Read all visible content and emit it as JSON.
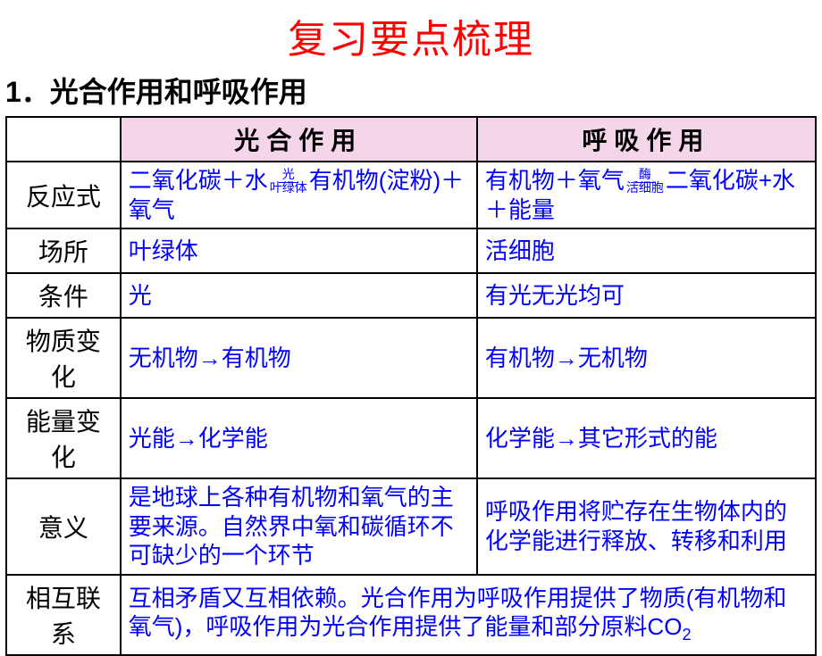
{
  "colors": {
    "title": "#ff0000",
    "subtitle": "#000000",
    "header_bg": "#f5d5ea",
    "header_text": "#000000",
    "row_header_text": "#000000",
    "cell_text": "#0000ff",
    "border": "#000000",
    "background": "#ffffff"
  },
  "title": "复习要点梳理",
  "subtitle": "1．光合作用和呼吸作用",
  "table": {
    "columns": {
      "photo": "光合作用",
      "resp": "呼吸作用"
    },
    "rows": [
      {
        "label": "反应式",
        "photo": {
          "prefix": "二氧化碳＋水",
          "arrow_top": "光",
          "arrow_bottom": "叶绿体",
          "suffix": "有机物(淀粉)＋氧气"
        },
        "resp": {
          "prefix": "有机物＋氧气",
          "arrow_top": "酶",
          "arrow_bottom": "活细胞",
          "suffix": "二氧化碳+水＋能量"
        }
      },
      {
        "label": "场所",
        "photo": "叶绿体",
        "resp": "活细胞"
      },
      {
        "label": "条件",
        "photo": "光",
        "resp": "有光无光均可"
      },
      {
        "label": "物质变化",
        "photo": "无机物→有机物",
        "resp": "有机物→无机物"
      },
      {
        "label": "能量变化",
        "photo": "光能→化学能",
        "resp": "化学能→其它形式的能"
      },
      {
        "label": "意义",
        "photo": "是地球上各种有机物和氧气的主要来源。自然界中氧和碳循环不可缺少的一个环节",
        "resp": "呼吸作用将贮存在生物体内的化学能进行释放、转移和利用"
      },
      {
        "label": "相互联系",
        "merged": "互相矛盾又互相依赖。光合作用为呼吸作用提供了物质(有机物和氧气)，呼吸作用为光合作用提供了能量和部分原料CO",
        "merged_sub": "2"
      }
    ]
  }
}
